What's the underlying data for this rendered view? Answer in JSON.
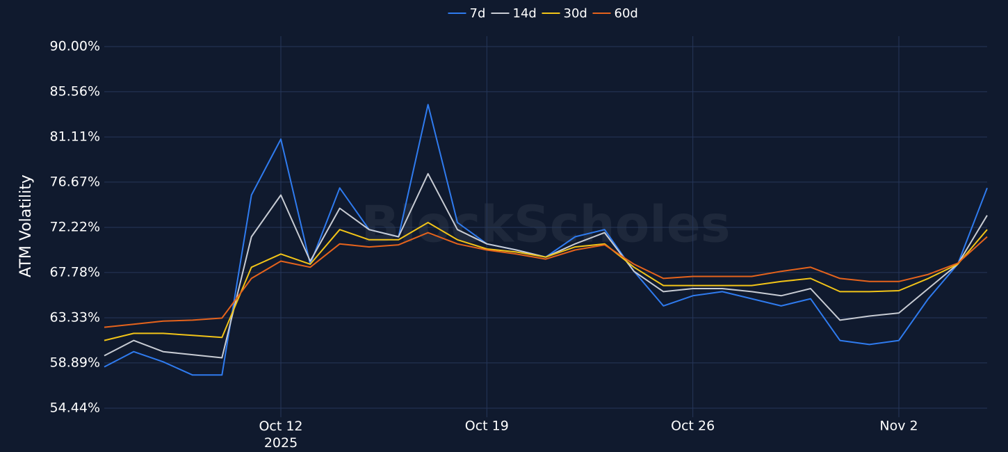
{
  "chart_data": {
    "type": "line",
    "ylabel": "ATM Volatility",
    "watermark": "BlockScholes",
    "legend": "top",
    "grid": true,
    "x": [
      "2025-10-06",
      "2025-10-07",
      "2025-10-08",
      "2025-10-09",
      "2025-10-10",
      "2025-10-11",
      "2025-10-12",
      "2025-10-13",
      "2025-10-14",
      "2025-10-15",
      "2025-10-16",
      "2025-10-17",
      "2025-10-18",
      "2025-10-19",
      "2025-10-20",
      "2025-10-21",
      "2025-10-22",
      "2025-10-23",
      "2025-10-24",
      "2025-10-25",
      "2025-10-26",
      "2025-10-27",
      "2025-10-28",
      "2025-10-29",
      "2025-10-30",
      "2025-10-31",
      "2025-11-01",
      "2025-11-02",
      "2025-11-03",
      "2025-11-04",
      "2025-11-05"
    ],
    "xlim": [
      "2025-10-06",
      "2025-11-05"
    ],
    "xticks": [
      {
        "value": "2025-10-12",
        "label": "Oct 12\n2025"
      },
      {
        "value": "2025-10-19",
        "label": "Oct 19"
      },
      {
        "value": "2025-10-26",
        "label": "Oct 26"
      },
      {
        "value": "2025-11-02",
        "label": "Nov 2"
      }
    ],
    "ylim": [
      53.55,
      90.5
    ],
    "yticks": [
      {
        "value": 54.44,
        "label": "54.44%"
      },
      {
        "value": 58.89,
        "label": "58.89%"
      },
      {
        "value": 63.33,
        "label": "63.33%"
      },
      {
        "value": 67.78,
        "label": "67.78%"
      },
      {
        "value": 72.22,
        "label": "72.22%"
      },
      {
        "value": 76.67,
        "label": "76.67%"
      },
      {
        "value": 81.11,
        "label": "81.11%"
      },
      {
        "value": 85.56,
        "label": "85.56%"
      },
      {
        "value": 90.0,
        "label": "90.00%"
      }
    ],
    "series": [
      {
        "name": "7d",
        "color": "#2f7bef",
        "values": [
          58.5,
          60.0,
          59.0,
          57.7,
          57.7,
          75.4,
          80.9,
          68.6,
          76.1,
          72.0,
          71.3,
          84.3,
          72.7,
          70.6,
          70.0,
          69.3,
          71.3,
          72.0,
          67.9,
          64.5,
          65.5,
          65.9,
          65.2,
          64.5,
          65.2,
          61.1,
          60.7,
          61.1,
          65.2,
          68.6,
          76.1
        ]
      },
      {
        "name": "14d",
        "color": "#c8ccd4",
        "values": [
          59.6,
          61.1,
          60.0,
          59.7,
          59.4,
          71.3,
          75.4,
          68.9,
          74.1,
          72.0,
          71.3,
          77.5,
          72.0,
          70.6,
          70.0,
          69.3,
          70.6,
          71.7,
          67.9,
          65.9,
          66.2,
          66.2,
          65.9,
          65.5,
          66.2,
          63.1,
          63.5,
          63.8,
          66.2,
          68.6,
          73.4
        ]
      },
      {
        "name": "30d",
        "color": "#f2c418",
        "values": [
          61.1,
          61.8,
          61.8,
          61.6,
          61.4,
          68.3,
          69.6,
          68.6,
          72.0,
          71.0,
          71.0,
          72.7,
          71.0,
          70.1,
          69.8,
          69.3,
          70.3,
          70.6,
          68.3,
          66.5,
          66.5,
          66.5,
          66.5,
          66.9,
          67.2,
          65.9,
          65.9,
          66.0,
          67.2,
          68.6,
          72.0
        ]
      },
      {
        "name": "60d",
        "color": "#e5631c",
        "values": [
          62.4,
          62.7,
          63.0,
          63.1,
          63.3,
          67.2,
          68.9,
          68.3,
          70.6,
          70.3,
          70.5,
          71.7,
          70.6,
          70.0,
          69.6,
          69.1,
          70.0,
          70.5,
          68.6,
          67.2,
          67.4,
          67.4,
          67.4,
          67.9,
          68.3,
          67.2,
          66.9,
          66.9,
          67.6,
          68.7,
          71.3
        ]
      }
    ]
  }
}
